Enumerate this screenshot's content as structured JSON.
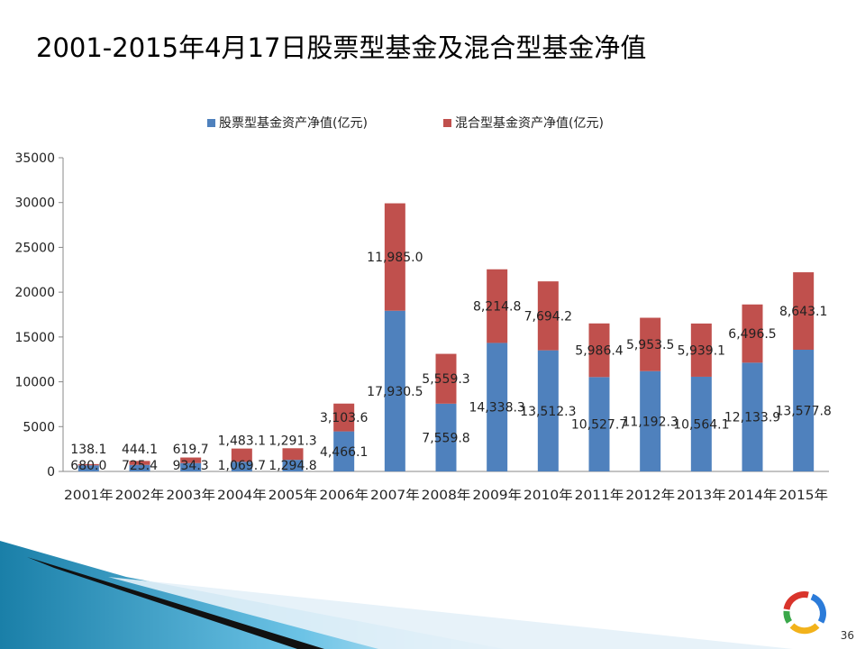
{
  "slide": {
    "title": "2001-2015年4月17日股票型基金及混合型基金净值",
    "page_number": "36"
  },
  "colors": {
    "stock": "#4F81BD",
    "mixed": "#C0504D",
    "axis": "#888888",
    "text": "#222222"
  },
  "chart_data": {
    "type": "bar",
    "stacked": true,
    "title": "",
    "xlabel": "",
    "ylabel": "",
    "ylim": [
      0,
      35000
    ],
    "yticks": [
      0,
      5000,
      10000,
      15000,
      20000,
      25000,
      30000,
      35000
    ],
    "grid": false,
    "legend": "top",
    "categories": [
      "2001年",
      "2002年",
      "2003年",
      "2004年",
      "2005年",
      "2006年",
      "2007年",
      "2008年",
      "2009年",
      "2010年",
      "2011年",
      "2012年",
      "2013年",
      "2014年",
      "2015年"
    ],
    "series": [
      {
        "name": "股票型基金资产净值(亿元)",
        "values": [
          680.0,
          725.4,
          934.3,
          1069.7,
          1294.8,
          4466.1,
          17930.5,
          7559.8,
          14338.3,
          13512.3,
          10527.7,
          11192.3,
          10564.1,
          12133.9,
          13577.8
        ],
        "labels": [
          "680.0",
          "725.4",
          "934.3",
          "1,069.7",
          "1,294.8",
          "4,466.1",
          "17,930.5",
          "7,559.8",
          "14,338.3",
          "13,512.3",
          "10,527.7",
          "11,192.3",
          "10,564.1",
          "12,133.9",
          "13,577.8"
        ]
      },
      {
        "name": "混合型基金资产净值(亿元)",
        "values": [
          138.1,
          444.1,
          619.7,
          1483.1,
          1291.3,
          3103.6,
          11985.0,
          5559.3,
          8214.8,
          7694.2,
          5986.4,
          5953.5,
          5939.1,
          6496.5,
          8643.1
        ],
        "labels": [
          "138.1",
          "444.1",
          "619.7",
          "1,483.1",
          "1,291.3",
          "3,103.6",
          "11,985.0",
          "5,559.3",
          "8,214.8",
          "7,694.2",
          "5,986.4",
          "5,953.5",
          "5,939.1",
          "6,496.5",
          "8,643.1"
        ]
      }
    ]
  }
}
